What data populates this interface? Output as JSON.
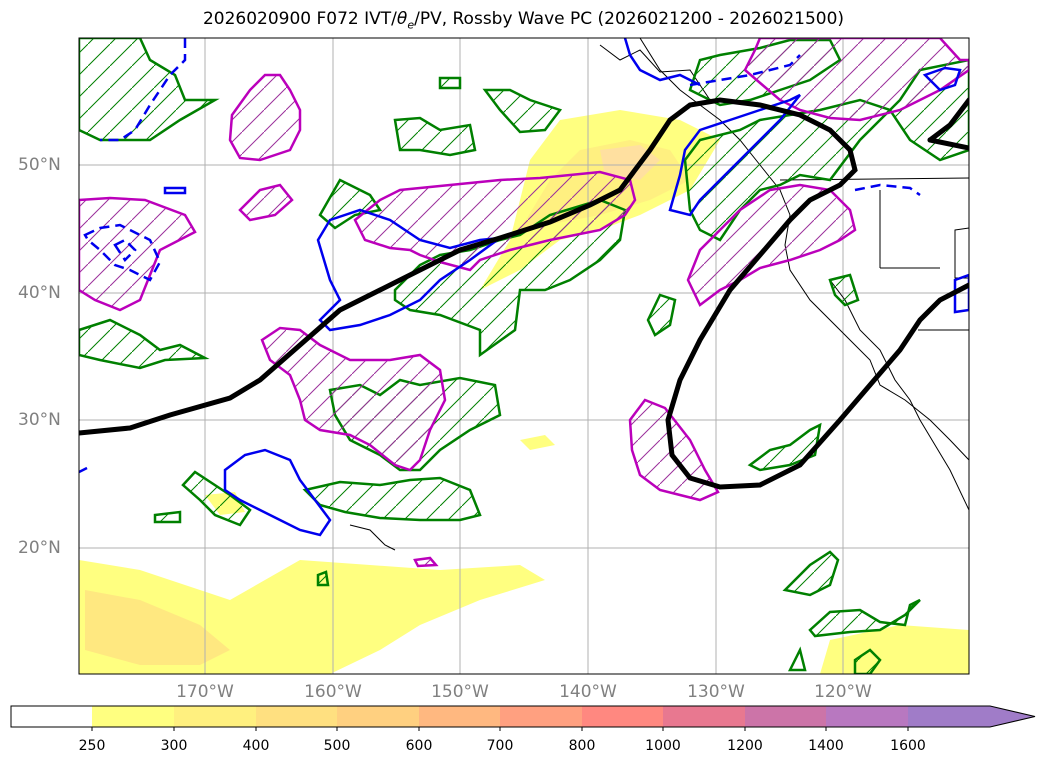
{
  "title": {
    "prefix": "2026020900 F072 IVT/",
    "theta": "θ",
    "theta_sub": "e",
    "suffix": "/PV, Rossby Wave PC (2026021200 - 2026021500)"
  },
  "axes": {
    "lat_labels": [
      "50°N",
      "40°N",
      "30°N",
      "20°N"
    ],
    "lon_labels": [
      "170°W",
      "160°W",
      "150°W",
      "140°W",
      "130°W",
      "120°W"
    ]
  },
  "colorbar": {
    "ticks": [
      "250",
      "300",
      "400",
      "500",
      "600",
      "700",
      "800",
      "1000",
      "1200",
      "1400",
      "1600"
    ],
    "colors": [
      "#ffffff",
      "#ffff80",
      "#fff07f",
      "#ffe080",
      "#ffd080",
      "#ffb880",
      "#ffa080",
      "#ff8880",
      "#e87890",
      "#cc74a8",
      "#b878c0",
      "#a07cc8"
    ]
  },
  "legend_colors": {
    "black_line": "#000000",
    "magenta": "#bb00bb",
    "green": "#008000",
    "blue": "#0000ee"
  }
}
